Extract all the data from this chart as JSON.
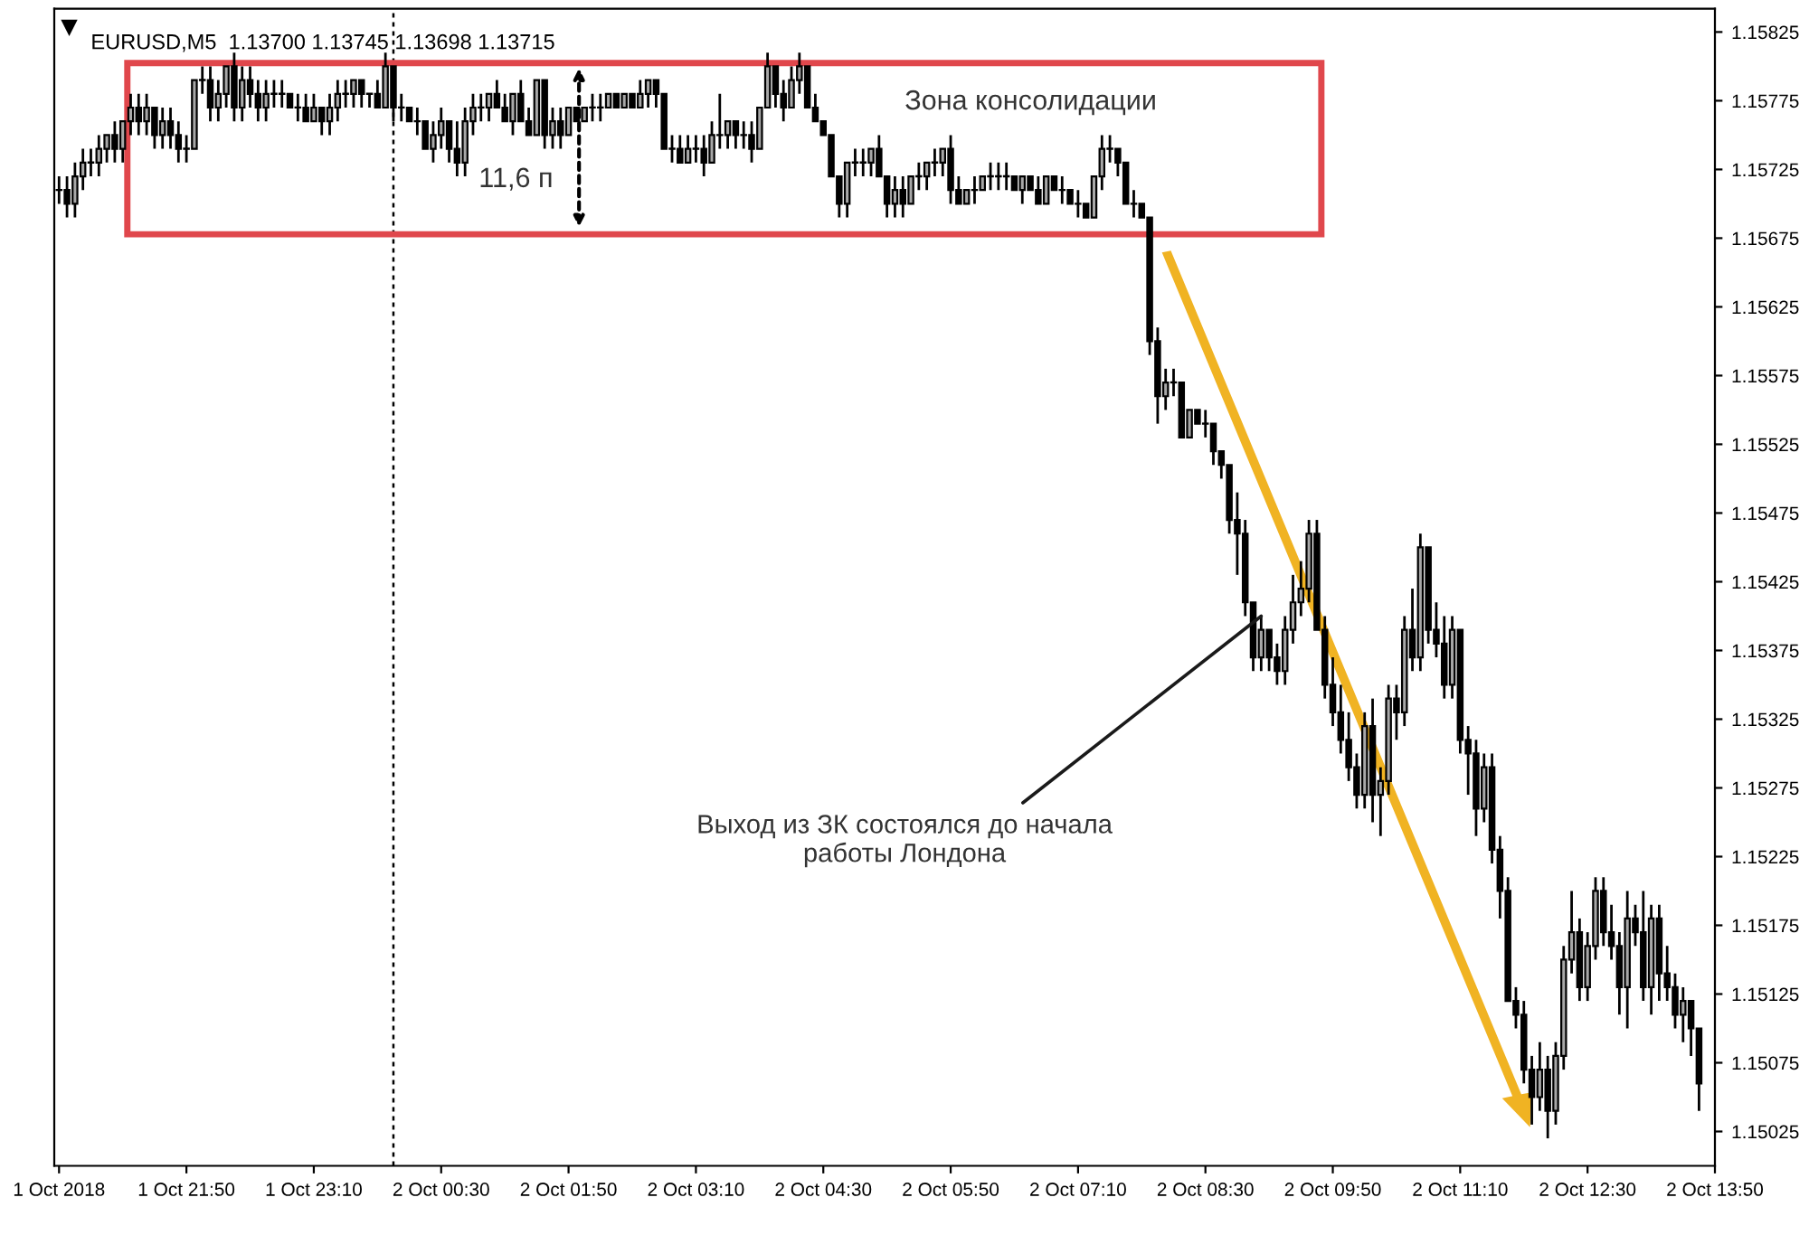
{
  "chart_data": {
    "type": "candlestick",
    "title": "EURUSD,M5  1.13700 1.13745 1.13698 1.13715",
    "x": [
      "2018-10-01T20:30",
      "2018-10-01T20:35",
      "2018-10-01T20:40",
      "2018-10-01T20:45",
      "2018-10-01T20:50",
      "2018-10-01T20:55",
      "2018-10-01T21:00",
      "2018-10-01T21:05",
      "2018-10-01T21:10",
      "2018-10-01T21:15",
      "2018-10-01T21:20",
      "2018-10-01T21:25",
      "2018-10-01T21:30",
      "2018-10-01T21:35",
      "2018-10-01T21:40",
      "2018-10-01T21:45",
      "2018-10-01T21:50",
      "2018-10-01T21:55",
      "2018-10-01T22:00",
      "2018-10-01T22:05",
      "2018-10-01T22:10",
      "2018-10-01T22:15",
      "2018-10-01T22:20",
      "2018-10-01T22:25",
      "2018-10-01T22:30",
      "2018-10-01T22:35",
      "2018-10-01T22:40",
      "2018-10-01T22:45",
      "2018-10-01T22:50",
      "2018-10-01T22:55",
      "2018-10-01T23:00",
      "2018-10-01T23:05",
      "2018-10-01T23:10",
      "2018-10-01T23:15",
      "2018-10-01T23:20",
      "2018-10-01T23:25",
      "2018-10-01T23:30",
      "2018-10-01T23:35",
      "2018-10-01T23:40",
      "2018-10-01T23:45",
      "2018-10-01T23:50",
      "2018-10-01T23:55",
      "2018-10-02T00:00",
      "2018-10-02T00:05",
      "2018-10-02T00:10",
      "2018-10-02T00:15",
      "2018-10-02T00:20",
      "2018-10-02T00:25",
      "2018-10-02T00:30",
      "2018-10-02T00:35",
      "2018-10-02T00:40",
      "2018-10-02T00:45",
      "2018-10-02T00:50",
      "2018-10-02T00:55",
      "2018-10-02T01:00",
      "2018-10-02T01:05",
      "2018-10-02T01:10",
      "2018-10-02T01:15",
      "2018-10-02T01:20",
      "2018-10-02T01:25",
      "2018-10-02T01:30",
      "2018-10-02T01:35",
      "2018-10-02T01:40",
      "2018-10-02T01:45",
      "2018-10-02T01:50",
      "2018-10-02T01:55",
      "2018-10-02T02:00",
      "2018-10-02T02:05",
      "2018-10-02T02:10",
      "2018-10-02T02:15",
      "2018-10-02T02:20",
      "2018-10-02T02:25",
      "2018-10-02T02:30",
      "2018-10-02T02:35",
      "2018-10-02T02:40",
      "2018-10-02T02:45",
      "2018-10-02T02:50",
      "2018-10-02T02:55",
      "2018-10-02T03:00",
      "2018-10-02T03:05",
      "2018-10-02T03:10",
      "2018-10-02T03:15",
      "2018-10-02T03:20",
      "2018-10-02T03:25",
      "2018-10-02T03:30",
      "2018-10-02T03:35",
      "2018-10-02T03:40",
      "2018-10-02T03:45",
      "2018-10-02T03:50",
      "2018-10-02T03:55",
      "2018-10-02T04:00",
      "2018-10-02T04:05",
      "2018-10-02T04:10",
      "2018-10-02T04:15",
      "2018-10-02T04:20",
      "2018-10-02T04:25",
      "2018-10-02T04:30",
      "2018-10-02T04:35",
      "2018-10-02T04:40",
      "2018-10-02T04:45",
      "2018-10-02T04:50",
      "2018-10-02T04:55",
      "2018-10-02T05:00",
      "2018-10-02T05:05",
      "2018-10-02T05:10",
      "2018-10-02T05:15",
      "2018-10-02T05:20",
      "2018-10-02T05:25",
      "2018-10-02T05:30",
      "2018-10-02T05:35",
      "2018-10-02T05:40",
      "2018-10-02T05:45",
      "2018-10-02T05:50",
      "2018-10-02T05:55",
      "2018-10-02T06:00",
      "2018-10-02T06:05",
      "2018-10-02T06:10",
      "2018-10-02T06:15",
      "2018-10-02T06:20",
      "2018-10-02T06:25",
      "2018-10-02T06:30",
      "2018-10-02T06:35",
      "2018-10-02T06:40",
      "2018-10-02T06:45",
      "2018-10-02T06:50",
      "2018-10-02T06:55",
      "2018-10-02T07:00",
      "2018-10-02T07:05",
      "2018-10-02T07:10",
      "2018-10-02T07:15",
      "2018-10-02T07:20",
      "2018-10-02T07:25",
      "2018-10-02T07:30",
      "2018-10-02T07:35",
      "2018-10-02T07:40",
      "2018-10-02T07:45",
      "2018-10-02T07:50",
      "2018-10-02T07:55",
      "2018-10-02T08:00",
      "2018-10-02T08:05",
      "2018-10-02T08:10",
      "2018-10-02T08:15",
      "2018-10-02T08:20",
      "2018-10-02T08:25",
      "2018-10-02T08:30",
      "2018-10-02T08:35",
      "2018-10-02T08:40",
      "2018-10-02T08:45",
      "2018-10-02T08:50",
      "2018-10-02T08:55",
      "2018-10-02T09:00",
      "2018-10-02T09:05",
      "2018-10-02T09:10",
      "2018-10-02T09:15",
      "2018-10-02T09:20",
      "2018-10-02T09:25",
      "2018-10-02T09:30",
      "2018-10-02T09:35",
      "2018-10-02T09:40",
      "2018-10-02T09:45",
      "2018-10-02T09:50",
      "2018-10-02T09:55",
      "2018-10-02T10:00",
      "2018-10-02T10:05",
      "2018-10-02T10:10",
      "2018-10-02T10:15",
      "2018-10-02T10:20",
      "2018-10-02T10:25",
      "2018-10-02T10:30",
      "2018-10-02T10:35",
      "2018-10-02T10:40",
      "2018-10-02T10:45",
      "2018-10-02T10:50",
      "2018-10-02T10:55",
      "2018-10-02T11:00",
      "2018-10-02T11:05",
      "2018-10-02T11:10",
      "2018-10-02T11:15",
      "2018-10-02T11:20",
      "2018-10-02T11:25",
      "2018-10-02T11:30",
      "2018-10-02T11:35",
      "2018-10-02T11:40",
      "2018-10-02T11:45",
      "2018-10-02T11:50",
      "2018-10-02T11:55",
      "2018-10-02T12:00",
      "2018-10-02T12:05",
      "2018-10-02T12:10",
      "2018-10-02T12:15",
      "2018-10-02T12:20",
      "2018-10-02T12:25",
      "2018-10-02T12:30",
      "2018-10-02T12:35",
      "2018-10-02T12:40",
      "2018-10-02T12:45",
      "2018-10-02T12:50",
      "2018-10-02T12:55",
      "2018-10-02T13:00",
      "2018-10-02T13:05",
      "2018-10-02T13:10",
      "2018-10-02T13:15",
      "2018-10-02T13:20",
      "2018-10-02T13:25",
      "2018-10-02T13:30",
      "2018-10-02T13:35",
      "2018-10-02T13:40"
    ],
    "ohlc": [
      [
        1.1571,
        1.1572,
        1.157,
        1.1571
      ],
      [
        1.1571,
        1.1572,
        1.1569,
        1.157
      ],
      [
        1.157,
        1.1573,
        1.1569,
        1.1572
      ],
      [
        1.1572,
        1.1574,
        1.1571,
        1.1573
      ],
      [
        1.1573,
        1.1574,
        1.1572,
        1.1573
      ],
      [
        1.1573,
        1.1575,
        1.1572,
        1.1574
      ],
      [
        1.1574,
        1.1575,
        1.1573,
        1.1575
      ],
      [
        1.1575,
        1.1576,
        1.1573,
        1.1574
      ],
      [
        1.1574,
        1.1576,
        1.1573,
        1.1576
      ],
      [
        1.1576,
        1.1578,
        1.1575,
        1.1577
      ],
      [
        1.1577,
        1.1578,
        1.1575,
        1.1576
      ],
      [
        1.1576,
        1.1578,
        1.1575,
        1.1577
      ],
      [
        1.1577,
        1.1577,
        1.1574,
        1.1575
      ],
      [
        1.1575,
        1.1577,
        1.1574,
        1.1576
      ],
      [
        1.1576,
        1.1577,
        1.1574,
        1.1575
      ],
      [
        1.1575,
        1.1576,
        1.1573,
        1.1574
      ],
      [
        1.1574,
        1.1575,
        1.1573,
        1.1574
      ],
      [
        1.1574,
        1.1579,
        1.1574,
        1.1579
      ],
      [
        1.1579,
        1.158,
        1.1578,
        1.1579
      ],
      [
        1.1579,
        1.158,
        1.1576,
        1.1577
      ],
      [
        1.1577,
        1.1579,
        1.1576,
        1.1578
      ],
      [
        1.1578,
        1.158,
        1.1577,
        1.158
      ],
      [
        1.158,
        1.1581,
        1.1576,
        1.1577
      ],
      [
        1.1577,
        1.158,
        1.1576,
        1.1579
      ],
      [
        1.1579,
        1.158,
        1.1577,
        1.1578
      ],
      [
        1.1578,
        1.1579,
        1.1576,
        1.1577
      ],
      [
        1.1577,
        1.1579,
        1.1576,
        1.1578
      ],
      [
        1.1578,
        1.1579,
        1.1577,
        1.1578
      ],
      [
        1.1578,
        1.1579,
        1.1577,
        1.1578
      ],
      [
        1.1578,
        1.1578,
        1.1577,
        1.1577
      ],
      [
        1.1577,
        1.1578,
        1.1576,
        1.1577
      ],
      [
        1.1577,
        1.1578,
        1.1576,
        1.1576
      ],
      [
        1.1576,
        1.1578,
        1.1576,
        1.1577
      ],
      [
        1.1577,
        1.1577,
        1.1575,
        1.1576
      ],
      [
        1.1576,
        1.1578,
        1.1575,
        1.1577
      ],
      [
        1.1577,
        1.1579,
        1.1576,
        1.1578
      ],
      [
        1.1578,
        1.1579,
        1.1577,
        1.1578
      ],
      [
        1.1578,
        1.1579,
        1.1577,
        1.1579
      ],
      [
        1.1579,
        1.1579,
        1.1577,
        1.1578
      ],
      [
        1.1578,
        1.1578,
        1.1577,
        1.1578
      ],
      [
        1.1578,
        1.1579,
        1.1577,
        1.1577
      ],
      [
        1.1577,
        1.1581,
        1.1577,
        1.158
      ],
      [
        1.158,
        1.158,
        1.1576,
        1.1577
      ],
      [
        1.1577,
        1.1578,
        1.1576,
        1.1577
      ],
      [
        1.1577,
        1.1577,
        1.1576,
        1.1576
      ],
      [
        1.1576,
        1.1577,
        1.1575,
        1.1576
      ],
      [
        1.1576,
        1.1576,
        1.1574,
        1.1574
      ],
      [
        1.1574,
        1.1576,
        1.1573,
        1.1575
      ],
      [
        1.1575,
        1.1577,
        1.1574,
        1.1576
      ],
      [
        1.1576,
        1.1576,
        1.1573,
        1.1574
      ],
      [
        1.1574,
        1.1576,
        1.1572,
        1.1573
      ],
      [
        1.1573,
        1.1577,
        1.1572,
        1.1576
      ],
      [
        1.1576,
        1.1578,
        1.1575,
        1.1577
      ],
      [
        1.1577,
        1.1578,
        1.1576,
        1.1577
      ],
      [
        1.1577,
        1.1578,
        1.1576,
        1.1578
      ],
      [
        1.1578,
        1.1579,
        1.1577,
        1.1577
      ],
      [
        1.1577,
        1.1578,
        1.1576,
        1.1576
      ],
      [
        1.1576,
        1.1578,
        1.1575,
        1.1578
      ],
      [
        1.1578,
        1.1579,
        1.1576,
        1.1576
      ],
      [
        1.1576,
        1.1577,
        1.1575,
        1.1575
      ],
      [
        1.1575,
        1.1579,
        1.1575,
        1.1579
      ],
      [
        1.1579,
        1.1579,
        1.1574,
        1.1575
      ],
      [
        1.1575,
        1.1577,
        1.1574,
        1.1576
      ],
      [
        1.1576,
        1.1577,
        1.1574,
        1.1575
      ],
      [
        1.1575,
        1.1577,
        1.1575,
        1.1577
      ],
      [
        1.1577,
        1.1577,
        1.1576,
        1.1576
      ],
      [
        1.1576,
        1.1577,
        1.1576,
        1.1577
      ],
      [
        1.1577,
        1.1578,
        1.1576,
        1.1577
      ],
      [
        1.1577,
        1.1578,
        1.1576,
        1.1577
      ],
      [
        1.1577,
        1.1578,
        1.1577,
        1.1578
      ],
      [
        1.1578,
        1.1578,
        1.1577,
        1.1577
      ],
      [
        1.1577,
        1.1578,
        1.1577,
        1.1578
      ],
      [
        1.1578,
        1.1578,
        1.1577,
        1.1577
      ],
      [
        1.1577,
        1.1579,
        1.1577,
        1.1578
      ],
      [
        1.1578,
        1.1579,
        1.1577,
        1.1579
      ],
      [
        1.1579,
        1.1579,
        1.1577,
        1.1578
      ],
      [
        1.1578,
        1.1578,
        1.1574,
        1.1574
      ],
      [
        1.1574,
        1.1575,
        1.1573,
        1.1574
      ],
      [
        1.1574,
        1.1575,
        1.1573,
        1.1573
      ],
      [
        1.1573,
        1.1575,
        1.1573,
        1.1574
      ],
      [
        1.1574,
        1.1575,
        1.1573,
        1.1574
      ],
      [
        1.1574,
        1.1575,
        1.1572,
        1.1573
      ],
      [
        1.1573,
        1.1576,
        1.1573,
        1.1575
      ],
      [
        1.1575,
        1.1578,
        1.1574,
        1.1575
      ],
      [
        1.1575,
        1.1576,
        1.1574,
        1.1576
      ],
      [
        1.1576,
        1.1576,
        1.1574,
        1.1575
      ],
      [
        1.1575,
        1.1576,
        1.1574,
        1.1575
      ],
      [
        1.1575,
        1.1576,
        1.1573,
        1.1574
      ],
      [
        1.1574,
        1.1577,
        1.1574,
        1.1577
      ],
      [
        1.1577,
        1.1581,
        1.1577,
        1.158
      ],
      [
        1.158,
        1.158,
        1.1577,
        1.1578
      ],
      [
        1.1578,
        1.1579,
        1.1576,
        1.1577
      ],
      [
        1.1577,
        1.158,
        1.1577,
        1.1579
      ],
      [
        1.1579,
        1.1581,
        1.1578,
        1.158
      ],
      [
        1.158,
        1.158,
        1.1577,
        1.1577
      ],
      [
        1.1577,
        1.1578,
        1.1576,
        1.1576
      ],
      [
        1.1576,
        1.1576,
        1.1575,
        1.1575
      ],
      [
        1.1575,
        1.1575,
        1.1572,
        1.1572
      ],
      [
        1.1572,
        1.1572,
        1.1569,
        1.157
      ],
      [
        1.157,
        1.1573,
        1.1569,
        1.1573
      ],
      [
        1.1573,
        1.1574,
        1.1572,
        1.1573
      ],
      [
        1.1573,
        1.1574,
        1.1572,
        1.1573
      ],
      [
        1.1573,
        1.1574,
        1.1572,
        1.1574
      ],
      [
        1.1574,
        1.1575,
        1.1572,
        1.1572
      ],
      [
        1.1572,
        1.1572,
        1.1569,
        1.157
      ],
      [
        1.157,
        1.1572,
        1.1569,
        1.1571
      ],
      [
        1.1571,
        1.1572,
        1.1569,
        1.157
      ],
      [
        1.157,
        1.1572,
        1.157,
        1.1572
      ],
      [
        1.1572,
        1.1573,
        1.1571,
        1.1572
      ],
      [
        1.1572,
        1.1573,
        1.1571,
        1.1573
      ],
      [
        1.1573,
        1.1574,
        1.1572,
        1.1573
      ],
      [
        1.1573,
        1.1574,
        1.1572,
        1.1574
      ],
      [
        1.1574,
        1.1575,
        1.157,
        1.1571
      ],
      [
        1.1571,
        1.1572,
        1.157,
        1.157
      ],
      [
        1.157,
        1.1571,
        1.157,
        1.1571
      ],
      [
        1.1571,
        1.1572,
        1.157,
        1.1571
      ],
      [
        1.1571,
        1.1572,
        1.1571,
        1.1572
      ],
      [
        1.1572,
        1.1573,
        1.1571,
        1.1572
      ],
      [
        1.1572,
        1.1573,
        1.1571,
        1.1572
      ],
      [
        1.1572,
        1.1573,
        1.1571,
        1.1572
      ],
      [
        1.1572,
        1.1572,
        1.1571,
        1.1571
      ],
      [
        1.1571,
        1.1572,
        1.157,
        1.1572
      ],
      [
        1.1572,
        1.1572,
        1.1571,
        1.1571
      ],
      [
        1.1571,
        1.1572,
        1.157,
        1.157
      ],
      [
        1.157,
        1.1572,
        1.157,
        1.1572
      ],
      [
        1.1572,
        1.1572,
        1.1571,
        1.1571
      ],
      [
        1.1571,
        1.1572,
        1.157,
        1.1571
      ],
      [
        1.1571,
        1.1571,
        1.157,
        1.157
      ],
      [
        1.157,
        1.1571,
        1.1569,
        1.157
      ],
      [
        1.157,
        1.157,
        1.1569,
        1.1569
      ],
      [
        1.1569,
        1.1572,
        1.1569,
        1.1572
      ],
      [
        1.1572,
        1.1575,
        1.1571,
        1.1574
      ],
      [
        1.1574,
        1.1575,
        1.1573,
        1.1574
      ],
      [
        1.1574,
        1.1574,
        1.1572,
        1.1573
      ],
      [
        1.1573,
        1.1573,
        1.157,
        1.157
      ],
      [
        1.157,
        1.1571,
        1.1569,
        1.157
      ],
      [
        1.157,
        1.157,
        1.1569,
        1.1569
      ],
      [
        1.1569,
        1.1569,
        1.1559,
        1.156
      ],
      [
        1.156,
        1.1561,
        1.1554,
        1.1556
      ],
      [
        1.1556,
        1.1558,
        1.1555,
        1.1557
      ],
      [
        1.1557,
        1.1558,
        1.1556,
        1.1557
      ],
      [
        1.1557,
        1.1557,
        1.1553,
        1.1553
      ],
      [
        1.1553,
        1.1555,
        1.1553,
        1.1555
      ],
      [
        1.1555,
        1.1555,
        1.1554,
        1.1554
      ],
      [
        1.1554,
        1.1555,
        1.1553,
        1.1554
      ],
      [
        1.1554,
        1.1554,
        1.1551,
        1.1552
      ],
      [
        1.1552,
        1.1552,
        1.155,
        1.1551
      ],
      [
        1.1551,
        1.1551,
        1.1546,
        1.1547
      ],
      [
        1.1547,
        1.1549,
        1.1543,
        1.1546
      ],
      [
        1.1546,
        1.1547,
        1.154,
        1.1541
      ],
      [
        1.1541,
        1.1541,
        1.1536,
        1.1537
      ],
      [
        1.1537,
        1.154,
        1.1536,
        1.1539
      ],
      [
        1.1539,
        1.1539,
        1.1536,
        1.1537
      ],
      [
        1.1537,
        1.1538,
        1.1535,
        1.1536
      ],
      [
        1.1536,
        1.154,
        1.1535,
        1.1539
      ],
      [
        1.1539,
        1.1543,
        1.1538,
        1.1541
      ],
      [
        1.1541,
        1.1544,
        1.154,
        1.1542
      ],
      [
        1.1542,
        1.1547,
        1.1541,
        1.1546
      ],
      [
        1.1546,
        1.1547,
        1.1539,
        1.1539
      ],
      [
        1.1539,
        1.154,
        1.1534,
        1.1535
      ],
      [
        1.1535,
        1.1537,
        1.1532,
        1.1533
      ],
      [
        1.1533,
        1.1535,
        1.153,
        1.1531
      ],
      [
        1.1531,
        1.1533,
        1.1528,
        1.1529
      ],
      [
        1.1529,
        1.153,
        1.1526,
        1.1527
      ],
      [
        1.1527,
        1.1533,
        1.1526,
        1.1532
      ],
      [
        1.1532,
        1.1534,
        1.1525,
        1.1527
      ],
      [
        1.1527,
        1.1529,
        1.1524,
        1.1528
      ],
      [
        1.1528,
        1.1535,
        1.1527,
        1.1534
      ],
      [
        1.1534,
        1.1535,
        1.1531,
        1.1533
      ],
      [
        1.1533,
        1.154,
        1.1532,
        1.1539
      ],
      [
        1.1539,
        1.1542,
        1.1536,
        1.1537
      ],
      [
        1.1537,
        1.1546,
        1.1536,
        1.1545
      ],
      [
        1.1545,
        1.1545,
        1.1538,
        1.1539
      ],
      [
        1.1539,
        1.1541,
        1.1537,
        1.1538
      ],
      [
        1.1538,
        1.154,
        1.1534,
        1.1535
      ],
      [
        1.1535,
        1.154,
        1.1534,
        1.1539
      ],
      [
        1.1539,
        1.1539,
        1.153,
        1.1531
      ],
      [
        1.1531,
        1.1532,
        1.1527,
        1.153
      ],
      [
        1.153,
        1.1531,
        1.1524,
        1.1526
      ],
      [
        1.1526,
        1.153,
        1.1525,
        1.1529
      ],
      [
        1.1529,
        1.153,
        1.1522,
        1.1523
      ],
      [
        1.1523,
        1.1524,
        1.1518,
        1.152
      ],
      [
        1.152,
        1.1521,
        1.1512,
        1.1512
      ],
      [
        1.1512,
        1.1513,
        1.151,
        1.1511
      ],
      [
        1.1511,
        1.1512,
        1.1506,
        1.1507
      ],
      [
        1.1507,
        1.1508,
        1.1503,
        1.1505
      ],
      [
        1.1505,
        1.1509,
        1.1504,
        1.1507
      ],
      [
        1.1507,
        1.1508,
        1.1502,
        1.1504
      ],
      [
        1.1504,
        1.1509,
        1.1503,
        1.1508
      ],
      [
        1.1508,
        1.1516,
        1.1507,
        1.1515
      ],
      [
        1.1515,
        1.152,
        1.1514,
        1.1517
      ],
      [
        1.1517,
        1.1518,
        1.1512,
        1.1513
      ],
      [
        1.1513,
        1.1517,
        1.1512,
        1.1516
      ],
      [
        1.1516,
        1.1521,
        1.1515,
        1.152
      ],
      [
        1.152,
        1.1521,
        1.1516,
        1.1517
      ],
      [
        1.1517,
        1.1519,
        1.1515,
        1.1516
      ],
      [
        1.1516,
        1.1517,
        1.1511,
        1.1513
      ],
      [
        1.1513,
        1.152,
        1.151,
        1.1518
      ],
      [
        1.1518,
        1.1519,
        1.1516,
        1.1517
      ],
      [
        1.1517,
        1.152,
        1.1512,
        1.1513
      ],
      [
        1.1513,
        1.1519,
        1.1511,
        1.1518
      ],
      [
        1.1518,
        1.1519,
        1.1512,
        1.1514
      ],
      [
        1.1514,
        1.1516,
        1.1512,
        1.1513
      ],
      [
        1.1513,
        1.1514,
        1.151,
        1.1511
      ],
      [
        1.1511,
        1.1513,
        1.1509,
        1.1512
      ],
      [
        1.1512,
        1.1512,
        1.1508,
        1.151
      ],
      [
        1.151,
        1.151,
        1.1504,
        1.1506
      ]
    ],
    "xlim": [
      "2018-10-01T20:27",
      "2018-10-02T13:50"
    ],
    "xticks": [
      {
        "value": "2018-10-01T20:30",
        "label": "1 Oct 2018"
      },
      {
        "value": "2018-10-01T21:50",
        "label": "1 Oct 21:50"
      },
      {
        "value": "2018-10-01T23:10",
        "label": "1 Oct 23:10"
      },
      {
        "value": "2018-10-02T00:30",
        "label": "2 Oct 00:30"
      },
      {
        "value": "2018-10-02T01:50",
        "label": "2 Oct 01:50"
      },
      {
        "value": "2018-10-02T03:10",
        "label": "2 Oct 03:10"
      },
      {
        "value": "2018-10-02T04:30",
        "label": "2 Oct 04:30"
      },
      {
        "value": "2018-10-02T05:50",
        "label": "2 Oct 05:50"
      },
      {
        "value": "2018-10-02T07:10",
        "label": "2 Oct 07:10"
      },
      {
        "value": "2018-10-02T08:30",
        "label": "2 Oct 08:30"
      },
      {
        "value": "2018-10-02T09:50",
        "label": "2 Oct 09:50"
      },
      {
        "value": "2018-10-02T11:10",
        "label": "2 Oct 11:10"
      },
      {
        "value": "2018-10-02T12:30",
        "label": "2 Oct 12:30"
      },
      {
        "value": "2018-10-02T13:50",
        "label": "2 Oct 13:50"
      }
    ],
    "ylim": [
      1.15,
      1.15842
    ],
    "yticks": [
      1.15025,
      1.15075,
      1.15125,
      1.15175,
      1.15225,
      1.15275,
      1.15325,
      1.15375,
      1.15425,
      1.15475,
      1.15525,
      1.15575,
      1.15625,
      1.15675,
      1.15725,
      1.15775,
      1.15825
    ],
    "ref_lines": [
      {
        "axis": "x",
        "value": "2018-10-02T00:00",
        "color": "#000000",
        "line_style": "dotted"
      }
    ],
    "annotations": [
      "Зона консолидации",
      "11,6 п",
      {
        "text": "Выход из ЗК состоялся до начала\nработы Лондона",
        "x": "2018-10-02T09:05",
        "y": 1.154
      }
    ]
  }
}
